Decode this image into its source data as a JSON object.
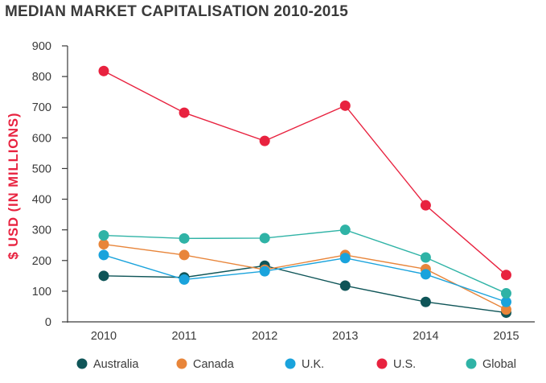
{
  "chart_data": {
    "type": "line",
    "title": "MEDIAN MARKET CAPITALISATION 2010-2015",
    "xlabel": "",
    "ylabel": "$ USD (IN MILLIONS)",
    "ylim": [
      0,
      900
    ],
    "yticks": [
      "0",
      "100",
      "200",
      "300",
      "400",
      "500",
      "600",
      "700",
      "800",
      "900"
    ],
    "categories": [
      "2010",
      "2011",
      "2012",
      "2013",
      "2014",
      "2015"
    ],
    "grid": false,
    "legend_position": "bottom",
    "series": [
      {
        "name": "Australia",
        "color": "#0f5558",
        "values": [
          150,
          145,
          183,
          118,
          65,
          30
        ]
      },
      {
        "name": "Canada",
        "color": "#e8853a",
        "values": [
          253,
          218,
          170,
          218,
          172,
          40
        ]
      },
      {
        "name": "U.K.",
        "color": "#1aa3dc",
        "values": [
          218,
          138,
          165,
          208,
          155,
          65
        ]
      },
      {
        "name": "U.S.",
        "color": "#e8223f",
        "values": [
          818,
          682,
          590,
          705,
          380,
          153
        ]
      },
      {
        "name": "Global",
        "color": "#2fb3a6",
        "values": [
          282,
          272,
          273,
          300,
          210,
          93
        ]
      }
    ]
  }
}
